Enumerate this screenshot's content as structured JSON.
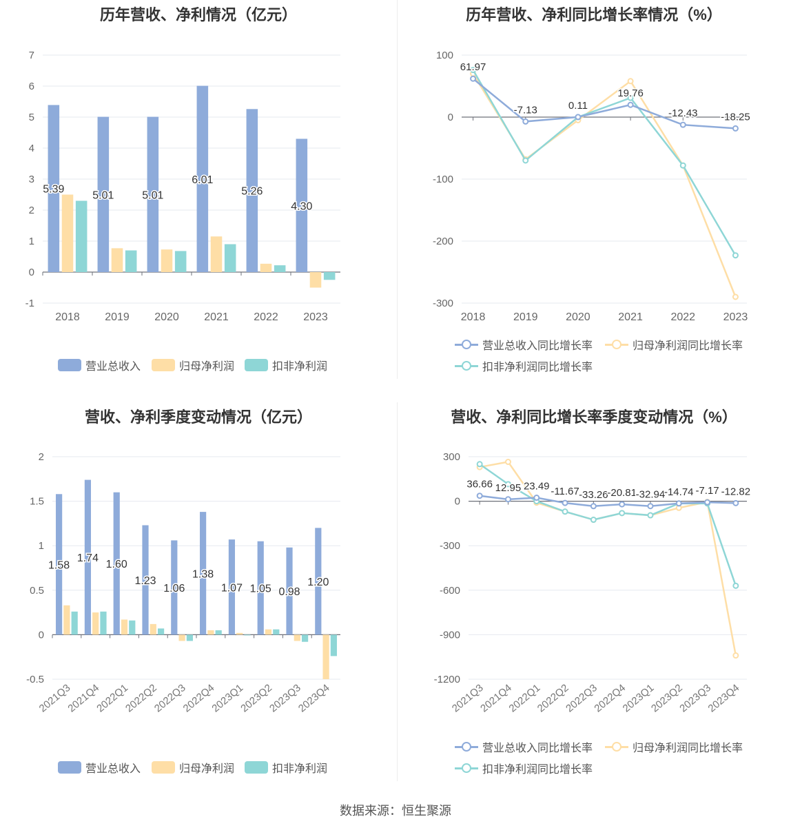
{
  "colors": {
    "revenue": "#8eabda",
    "net_profit": "#fedea6",
    "deducted_profit": "#8ed6d6"
  },
  "source": "数据来源：恒生聚源",
  "chart_data": [
    {
      "type": "bar",
      "title": "历年营收、净利情况（亿元）",
      "categories": [
        "2018",
        "2019",
        "2020",
        "2021",
        "2022",
        "2023"
      ],
      "ylim": [
        -1,
        7
      ],
      "yticks": [
        -1,
        0,
        1,
        2,
        3,
        4,
        5,
        6,
        7
      ],
      "grid": true,
      "legend": "bottom",
      "series": [
        {
          "name": "营业总收入",
          "values": [
            5.39,
            5.01,
            5.01,
            6.01,
            5.26,
            4.3
          ],
          "labels": [
            "5.39",
            "5.01",
            "5.01",
            "6.01",
            "5.26",
            "4.30"
          ]
        },
        {
          "name": "归母净利润",
          "values": [
            2.5,
            0.77,
            0.73,
            1.15,
            0.27,
            -0.5
          ]
        },
        {
          "name": "扣非净利润",
          "values": [
            2.3,
            0.7,
            0.68,
            0.9,
            0.22,
            -0.25
          ]
        }
      ]
    },
    {
      "type": "line",
      "title": "历年营收、净利同比增长率情况（%）",
      "categories": [
        "2018",
        "2019",
        "2020",
        "2021",
        "2022",
        "2023"
      ],
      "ylim": [
        -300,
        100
      ],
      "yticks": [
        -300,
        -200,
        -100,
        0,
        100
      ],
      "grid": true,
      "legend": "bottom",
      "series": [
        {
          "name": "营业总收入同比增长率",
          "values": [
            61.97,
            -7.13,
            0.11,
            19.76,
            -12.43,
            -18.25
          ],
          "labels": [
            "61.97",
            "-7.13",
            "0.11",
            "19.76",
            "-12.43",
            "-18.25"
          ]
        },
        {
          "name": "归母净利润同比增长率",
          "values": [
            70,
            -68,
            -5,
            58,
            -78,
            -290
          ]
        },
        {
          "name": "扣非净利润同比增长率",
          "values": [
            76,
            -70,
            0,
            31,
            -78,
            -223
          ]
        }
      ]
    },
    {
      "type": "bar",
      "title": "营收、净利季度变动情况（亿元）",
      "categories": [
        "2021Q3",
        "2021Q4",
        "2022Q1",
        "2022Q2",
        "2022Q3",
        "2022Q4",
        "2023Q1",
        "2023Q2",
        "2023Q3",
        "2023Q4"
      ],
      "ylim": [
        -0.5,
        2
      ],
      "yticks": [
        -0.5,
        0,
        0.5,
        1,
        1.5,
        2
      ],
      "grid": true,
      "legend": "bottom",
      "series": [
        {
          "name": "营业总收入",
          "values": [
            1.58,
            1.74,
            1.6,
            1.23,
            1.06,
            1.38,
            1.07,
            1.05,
            0.98,
            1.2
          ],
          "labels": [
            "1.58",
            "1.74",
            "1.60",
            "1.23",
            "1.06",
            "1.38",
            "1.07",
            "1.05",
            "0.98",
            "1.20"
          ]
        },
        {
          "name": "归母净利润",
          "values": [
            0.33,
            0.25,
            0.17,
            0.12,
            -0.07,
            0.05,
            0.02,
            0.06,
            -0.07,
            -0.5
          ]
        },
        {
          "name": "扣非净利润",
          "values": [
            0.26,
            0.26,
            0.16,
            0.07,
            -0.07,
            0.05,
            0.0,
            0.06,
            -0.08,
            -0.24
          ]
        }
      ]
    },
    {
      "type": "line",
      "title": "营收、净利同比增长率季度变动情况（%）",
      "categories": [
        "2021Q3",
        "2021Q4",
        "2022Q1",
        "2022Q2",
        "2022Q3",
        "2022Q4",
        "2023Q1",
        "2023Q2",
        "2023Q3",
        "2023Q4"
      ],
      "ylim": [
        -1200,
        300
      ],
      "yticks": [
        -1200,
        -900,
        -600,
        -300,
        0,
        300
      ],
      "grid": true,
      "legend": "bottom",
      "series": [
        {
          "name": "营业总收入同比增长率",
          "values": [
            36.66,
            12.95,
            23.49,
            -11.67,
            -33.26,
            -20.81,
            -32.94,
            -14.74,
            -7.17,
            -12.82
          ],
          "labels": [
            "36.66",
            "12.95",
            "23.49",
            "-11.67",
            "-33.26",
            "-20.81",
            "-32.94",
            "-14.74",
            "-7.17",
            "-12.82"
          ]
        },
        {
          "name": "归母净利润同比增长率",
          "values": [
            230,
            265,
            -10,
            -70,
            -125,
            -80,
            -95,
            -45,
            -5,
            -1040
          ]
        },
        {
          "name": "扣非净利润同比增长率",
          "values": [
            250,
            115,
            0,
            -70,
            -125,
            -80,
            -95,
            -15,
            -15,
            -570
          ]
        }
      ]
    }
  ]
}
